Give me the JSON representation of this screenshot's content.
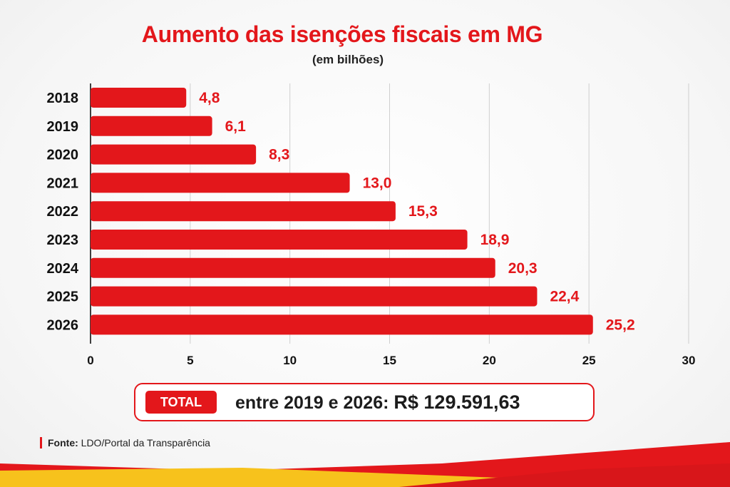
{
  "title": "Aumento das isenções fiscais em MG",
  "subtitle": "(em bilhões)",
  "colors": {
    "accent": "#e3171b",
    "ribbon_yellow": "#f7c21c"
  },
  "chart_data": {
    "type": "bar",
    "orientation": "horizontal",
    "title": "Aumento das isenções fiscais em MG",
    "subtitle": "(em bilhões)",
    "categories": [
      "2018",
      "2019",
      "2020",
      "2021",
      "2022",
      "2023",
      "2024",
      "2025",
      "2026"
    ],
    "values": [
      4.8,
      6.1,
      8.3,
      13.0,
      15.3,
      18.9,
      20.3,
      22.4,
      25.2
    ],
    "value_labels": [
      "4,8",
      "6,1",
      "8,3",
      "13,0",
      "15,3",
      "18,9",
      "20,3",
      "22,4",
      "25,2"
    ],
    "xlim": [
      0,
      30
    ],
    "xticks": [
      "0",
      "5",
      "10",
      "15",
      "20",
      "25",
      "30"
    ],
    "grid": "vertical",
    "legend": "none"
  },
  "total": {
    "badge": "TOTAL",
    "text_prefix": "entre 2019 e 2026:",
    "amount": "R$ 129.591,63"
  },
  "source": {
    "label": "Fonte:",
    "text": " LDO/Portal da Transparência"
  }
}
